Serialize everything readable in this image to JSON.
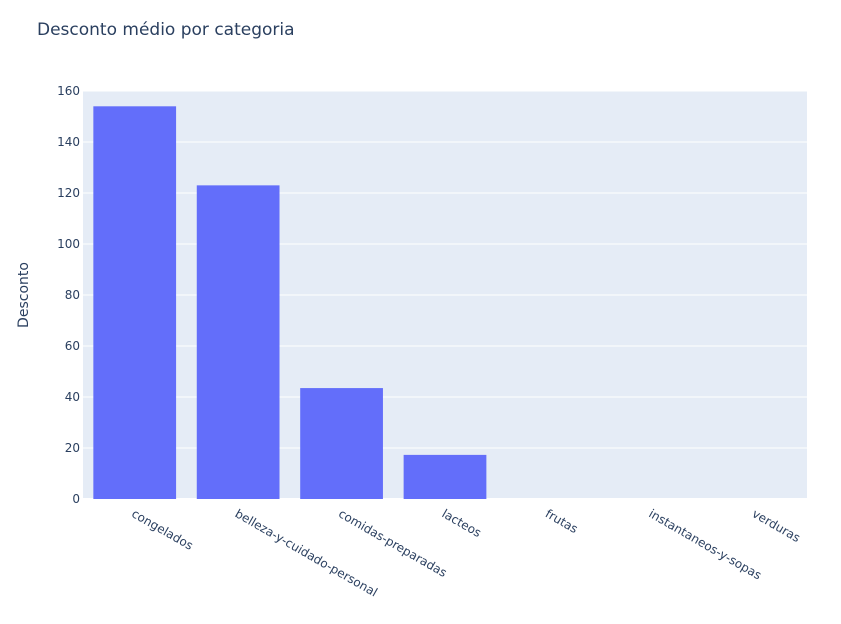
{
  "chart_data": {
    "type": "bar",
    "title": "Desconto médio por categoria",
    "xlabel": "",
    "ylabel": "Desconto",
    "categories": [
      "congelados",
      "belleza-y-cuidado-personal",
      "comidas-preparadas",
      "lacteos",
      "frutas",
      "instantaneos-y-sopas",
      "verduras"
    ],
    "values": [
      154,
      123,
      43.5,
      17.3,
      0,
      0,
      0
    ],
    "ylim": [
      0,
      160
    ],
    "yticks": [
      "0",
      "20",
      "40",
      "60",
      "80",
      "100",
      "120",
      "140",
      "160"
    ],
    "grid": true,
    "legend": "none",
    "colors": {
      "bar": "#636efa",
      "plot_bg": "#e5ecf6",
      "grid": "#ffffff",
      "text": "#2a3f5f"
    }
  }
}
